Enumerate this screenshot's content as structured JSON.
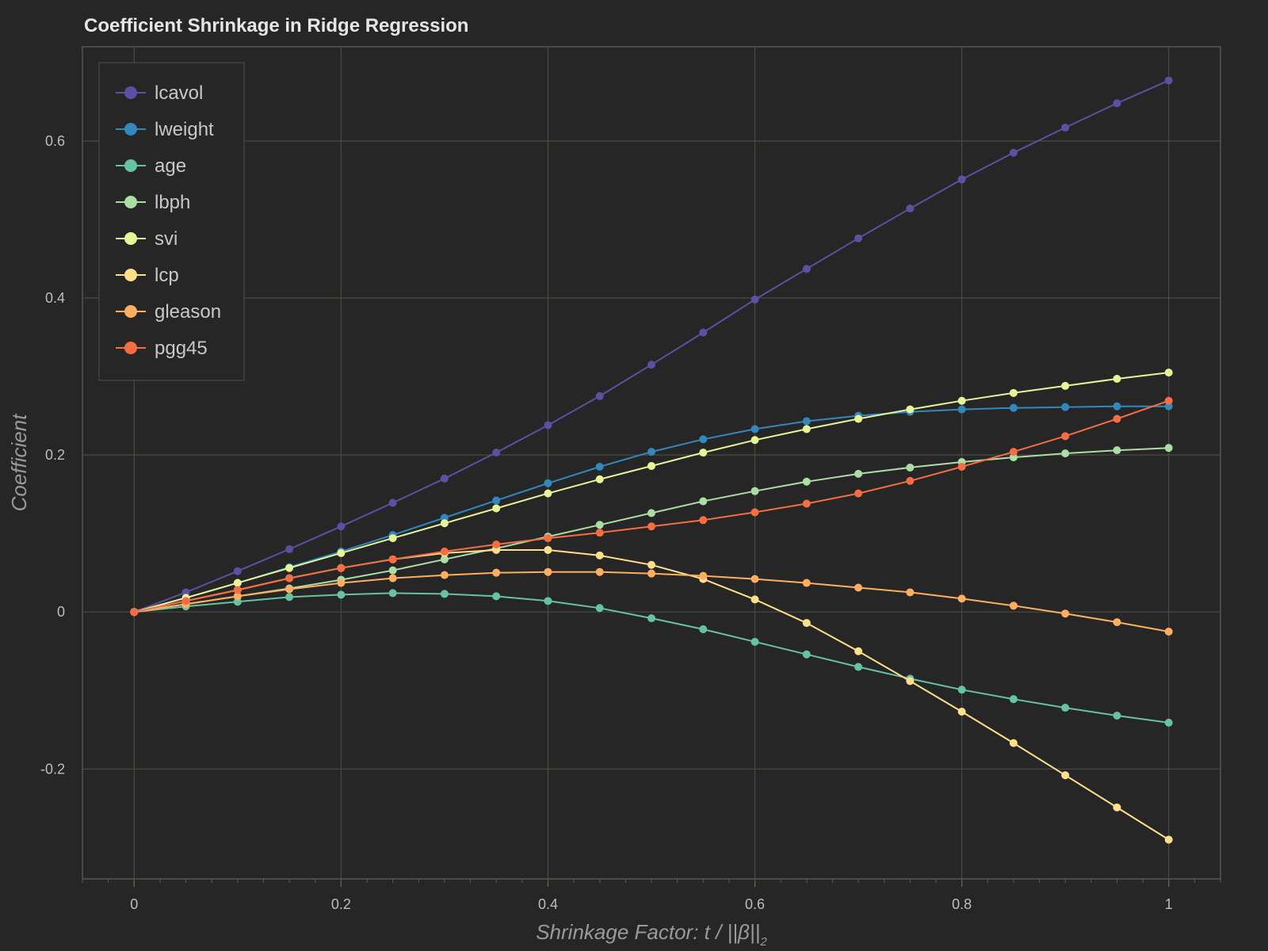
{
  "chart_data": {
    "type": "line",
    "title": "Coefficient Shrinkage in Ridge Regression",
    "xlabel": "Shrinkage Factor: t / ||β||",
    "xlabel_subscript": "2",
    "ylabel": "Coefficient",
    "xlim": [
      -0.05,
      1.05
    ],
    "ylim": [
      -0.34,
      0.72
    ],
    "xticks": [
      0,
      0.2,
      0.4,
      0.6,
      0.8,
      1
    ],
    "xtick_labels": [
      "0",
      "0.2",
      "0.4",
      "0.6",
      "0.8",
      "1"
    ],
    "yticks": [
      -0.2,
      0,
      0.2,
      0.4,
      0.6
    ],
    "ytick_labels": [
      "-0.2",
      "0",
      "0.2",
      "0.4",
      "0.6"
    ],
    "grid": true,
    "legend_position": "top-left",
    "x": [
      0,
      0.05,
      0.1,
      0.15,
      0.2,
      0.25,
      0.3,
      0.35,
      0.4,
      0.45,
      0.5,
      0.55,
      0.6,
      0.65,
      0.7,
      0.75,
      0.8,
      0.85,
      0.9,
      0.95,
      1
    ],
    "series": [
      {
        "name": "lcavol",
        "color": "#5e4fa2",
        "values": [
          0,
          0.025,
          0.052,
          0.08,
          0.109,
          0.139,
          0.17,
          0.203,
          0.238,
          0.275,
          0.315,
          0.356,
          0.398,
          0.437,
          0.476,
          0.514,
          0.551,
          0.585,
          0.617,
          0.648,
          0.677
        ]
      },
      {
        "name": "lweight",
        "color": "#3288bd",
        "values": [
          0,
          0.018,
          0.037,
          0.057,
          0.077,
          0.098,
          0.12,
          0.142,
          0.164,
          0.185,
          0.204,
          0.22,
          0.233,
          0.243,
          0.25,
          0.255,
          0.258,
          0.26,
          0.261,
          0.262,
          0.262
        ]
      },
      {
        "name": "age",
        "color": "#66c2a5",
        "values": [
          0,
          0.007,
          0.013,
          0.019,
          0.022,
          0.024,
          0.023,
          0.02,
          0.014,
          0.005,
          -0.008,
          -0.022,
          -0.038,
          -0.054,
          -0.07,
          -0.085,
          -0.099,
          -0.111,
          -0.122,
          -0.132,
          -0.141
        ]
      },
      {
        "name": "lbph",
        "color": "#abdda4",
        "values": [
          0,
          0.01,
          0.02,
          0.03,
          0.041,
          0.053,
          0.067,
          0.081,
          0.096,
          0.111,
          0.126,
          0.141,
          0.154,
          0.166,
          0.176,
          0.184,
          0.191,
          0.197,
          0.202,
          0.206,
          0.209
        ]
      },
      {
        "name": "svi",
        "color": "#e6f598",
        "values": [
          0,
          0.018,
          0.037,
          0.056,
          0.075,
          0.094,
          0.113,
          0.132,
          0.151,
          0.169,
          0.186,
          0.203,
          0.219,
          0.233,
          0.246,
          0.258,
          0.269,
          0.279,
          0.288,
          0.297,
          0.305
        ]
      },
      {
        "name": "lcp",
        "color": "#fee08b",
        "values": [
          0,
          0.014,
          0.028,
          0.043,
          0.056,
          0.067,
          0.075,
          0.079,
          0.079,
          0.072,
          0.06,
          0.042,
          0.016,
          -0.014,
          -0.05,
          -0.088,
          -0.127,
          -0.167,
          -0.208,
          -0.249,
          -0.29
        ]
      },
      {
        "name": "gleason",
        "color": "#fdae61",
        "values": [
          0,
          0.01,
          0.02,
          0.029,
          0.037,
          0.043,
          0.047,
          0.05,
          0.051,
          0.051,
          0.049,
          0.046,
          0.042,
          0.037,
          0.031,
          0.025,
          0.017,
          0.008,
          -0.002,
          -0.013,
          -0.025
        ]
      },
      {
        "name": "pgg45",
        "color": "#f46d43",
        "values": [
          0,
          0.014,
          0.028,
          0.043,
          0.056,
          0.067,
          0.077,
          0.086,
          0.094,
          0.101,
          0.109,
          0.117,
          0.127,
          0.138,
          0.151,
          0.167,
          0.185,
          0.204,
          0.224,
          0.246,
          0.269
        ]
      }
    ]
  }
}
